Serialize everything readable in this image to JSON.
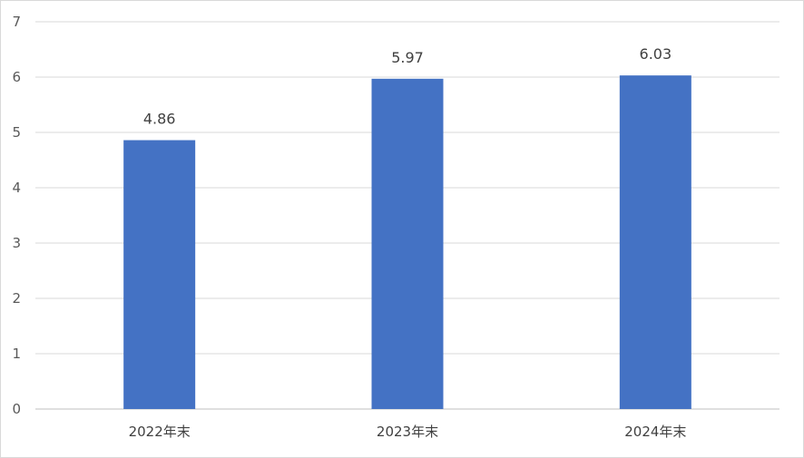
{
  "chart_data": {
    "type": "bar",
    "categories": [
      "2022年末",
      "2023年末",
      "2024年末"
    ],
    "values": [
      4.86,
      5.97,
      6.03
    ],
    "data_labels": [
      "4.86",
      "5.97",
      "6.03"
    ],
    "title": "",
    "xlabel": "",
    "ylabel": "",
    "ylim": [
      0,
      7
    ],
    "yticks": [
      "0",
      "1",
      "2",
      "3",
      "4",
      "5",
      "6",
      "7"
    ],
    "grid": true,
    "legend": "none",
    "colors": {
      "bar": "#4472c4",
      "grid": "#d9d9d9",
      "axis": "#bfbfbf"
    }
  }
}
